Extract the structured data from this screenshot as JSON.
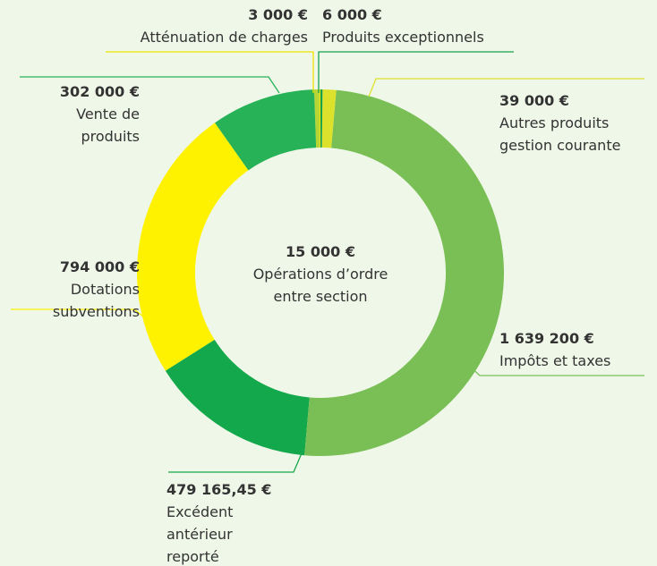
{
  "chart_data": {
    "type": "donut",
    "categories": [
      "Produits exceptionnels",
      "Autres produits gestion courante",
      "Impôts et taxes",
      "Excédent antérieur reporté Fonc",
      "Dotations subventions",
      "Vente de produits",
      "Opérations d’ordre entre section",
      "Atténuation de charges"
    ],
    "values": [
      6000,
      39000,
      1639200,
      479165.45,
      794000,
      302000,
      15000,
      3000
    ],
    "value_labels": [
      "6 000 €",
      "39 000 €",
      "1 639 200 €",
      "479 165,45 €",
      "794 000 €",
      "302 000 €",
      "15 000 €",
      "3 000 €"
    ],
    "colors": [
      "#17a14a",
      "#dce22b",
      "#79bf55",
      "#13a84b",
      "#fff200",
      "#27b257",
      "#b7d534",
      "#efe400"
    ]
  }
}
